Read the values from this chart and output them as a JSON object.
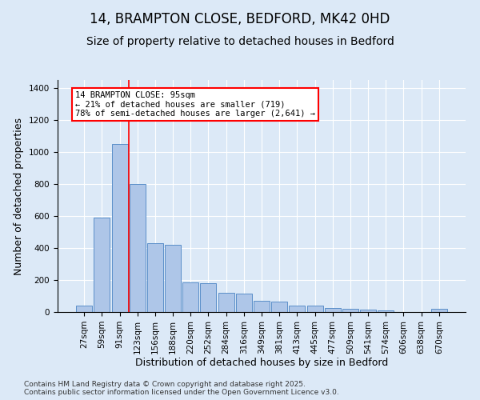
{
  "title": "14, BRAMPTON CLOSE, BEDFORD, MK42 0HD",
  "subtitle": "Size of property relative to detached houses in Bedford",
  "xlabel": "Distribution of detached houses by size in Bedford",
  "ylabel": "Number of detached properties",
  "categories": [
    "27sqm",
    "59sqm",
    "91sqm",
    "123sqm",
    "156sqm",
    "188sqm",
    "220sqm",
    "252sqm",
    "284sqm",
    "316sqm",
    "349sqm",
    "381sqm",
    "413sqm",
    "445sqm",
    "477sqm",
    "509sqm",
    "541sqm",
    "574sqm",
    "606sqm",
    "638sqm",
    "670sqm"
  ],
  "values": [
    40,
    590,
    1050,
    800,
    430,
    420,
    185,
    180,
    120,
    115,
    70,
    65,
    40,
    40,
    25,
    20,
    15,
    8,
    0,
    0,
    20
  ],
  "bar_color": "#aec6e8",
  "bar_edge_color": "#5b8fc9",
  "background_color": "#dce9f7",
  "vline_x_index": 2.5,
  "vline_color": "red",
  "annotation_text": "14 BRAMPTON CLOSE: 95sqm\n← 21% of detached houses are smaller (719)\n78% of semi-detached houses are larger (2,641) →",
  "annotation_box_color": "white",
  "annotation_box_edge": "red",
  "ylim": [
    0,
    1450
  ],
  "yticks": [
    0,
    200,
    400,
    600,
    800,
    1000,
    1200,
    1400
  ],
  "footer": "Contains HM Land Registry data © Crown copyright and database right 2025.\nContains public sector information licensed under the Open Government Licence v3.0.",
  "title_fontsize": 12,
  "subtitle_fontsize": 10,
  "axis_label_fontsize": 9,
  "tick_fontsize": 7.5,
  "footer_fontsize": 6.5,
  "annotation_fontsize": 7.5
}
